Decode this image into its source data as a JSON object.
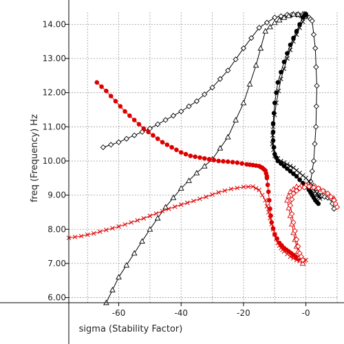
{
  "chart_data": {
    "type": "line",
    "xlabel": "sigma (Stability Factor)",
    "ylabel": "freq (Frequency) Hz",
    "xlim": [
      -76,
      10
    ],
    "ylim": [
      5.85,
      14.35
    ],
    "xticks": [
      {
        "value": -60,
        "label": "-60"
      },
      {
        "value": -40,
        "label": "-40"
      },
      {
        "value": -20,
        "label": "-20"
      },
      {
        "value": 0,
        "label": "-0"
      }
    ],
    "yticks": [
      {
        "value": 6,
        "label": "6.00"
      },
      {
        "value": 7,
        "label": "7.00"
      },
      {
        "value": 8,
        "label": "8.00"
      },
      {
        "value": 9,
        "label": "9.00"
      },
      {
        "value": 10,
        "label": "10.00"
      },
      {
        "value": 11,
        "label": "11.00"
      },
      {
        "value": 12,
        "label": "12.00"
      },
      {
        "value": 13,
        "label": "13.00"
      },
      {
        "value": 14,
        "label": "14.00"
      }
    ],
    "grid": true,
    "series": [
      {
        "color": "#000000",
        "marker": "diamond",
        "points": [
          [
            -65,
            10.4
          ],
          [
            -60,
            10.55
          ],
          [
            -55,
            10.75
          ],
          [
            -50,
            10.95
          ],
          [
            -45,
            11.2
          ],
          [
            -40,
            11.45
          ],
          [
            -35,
            11.75
          ],
          [
            -30,
            12.15
          ],
          [
            -25,
            12.65
          ],
          [
            -20,
            13.3
          ],
          [
            -15,
            13.9
          ],
          [
            -10,
            14.2
          ],
          [
            -6,
            14.28
          ],
          [
            -3,
            14.28
          ],
          [
            -1,
            14.25
          ],
          [
            1,
            14.2
          ],
          [
            2,
            14.1
          ],
          [
            3,
            13.3
          ],
          [
            3.5,
            12.2
          ],
          [
            3.2,
            11.0
          ],
          [
            2.5,
            10.0
          ],
          [
            1.5,
            9.4
          ],
          [
            1,
            9.15
          ],
          [
            2,
            9.05
          ],
          [
            4,
            9.0
          ],
          [
            6,
            8.95
          ],
          [
            8,
            8.9
          ],
          [
            9,
            8.6
          ]
        ]
      },
      {
        "color": "#000000",
        "marker": "triangle",
        "points": [
          [
            -64,
            5.85
          ],
          [
            -60,
            6.6
          ],
          [
            -55,
            7.3
          ],
          [
            -50,
            8.0
          ],
          [
            -45,
            8.65
          ],
          [
            -40,
            9.2
          ],
          [
            -35,
            9.65
          ],
          [
            -30,
            10.05
          ],
          [
            -25,
            10.7
          ],
          [
            -20,
            11.7
          ],
          [
            -16,
            12.8
          ],
          [
            -13,
            13.8
          ],
          [
            -10,
            14.05
          ],
          [
            -7,
            14.2
          ],
          [
            -4,
            14.3
          ],
          [
            -1,
            14.3
          ],
          [
            0,
            14.3
          ]
        ]
      },
      {
        "color": "#000000",
        "marker": "circle",
        "points": [
          [
            0,
            14.3
          ],
          [
            -1,
            14.2
          ],
          [
            -3,
            13.8
          ],
          [
            -5,
            13.4
          ],
          [
            -7,
            12.9
          ],
          [
            -9,
            12.3
          ],
          [
            -10,
            11.7
          ],
          [
            -10.5,
            11.1
          ],
          [
            -10.5,
            10.6
          ],
          [
            -10,
            10.2
          ],
          [
            -9,
            10.0
          ],
          [
            -7,
            9.85
          ],
          [
            -5,
            9.7
          ],
          [
            -3,
            9.55
          ],
          [
            -1,
            9.35
          ],
          [
            1,
            9.15
          ],
          [
            2,
            9.0
          ],
          [
            3,
            8.85
          ],
          [
            4,
            8.75
          ]
        ]
      },
      {
        "color": "#000000",
        "marker": "x",
        "points": [
          [
            0,
            14.25
          ],
          [
            -2,
            13.9
          ],
          [
            -4,
            13.5
          ],
          [
            -6,
            13.0
          ],
          [
            -8,
            12.4
          ],
          [
            -9.5,
            11.7
          ],
          [
            -10.5,
            11.0
          ],
          [
            -10.8,
            10.5
          ],
          [
            -10,
            10.15
          ],
          [
            -8,
            10.0
          ],
          [
            -6,
            9.9
          ],
          [
            -4,
            9.8
          ],
          [
            -2,
            9.65
          ],
          [
            0,
            9.5
          ],
          [
            2,
            9.3
          ],
          [
            3,
            9.1
          ],
          [
            4,
            9.0
          ],
          [
            4.5,
            8.9
          ]
        ]
      },
      {
        "color": "#dd0000",
        "marker": "circle",
        "points": [
          [
            -67,
            12.3
          ],
          [
            -64,
            12.05
          ],
          [
            -61,
            11.75
          ],
          [
            -58,
            11.45
          ],
          [
            -55,
            11.2
          ],
          [
            -52,
            10.95
          ],
          [
            -49,
            10.75
          ],
          [
            -46,
            10.55
          ],
          [
            -43,
            10.4
          ],
          [
            -40,
            10.25
          ],
          [
            -37,
            10.15
          ],
          [
            -34,
            10.1
          ],
          [
            -31,
            10.05
          ],
          [
            -28,
            10.0
          ],
          [
            -25,
            9.98
          ],
          [
            -22,
            9.95
          ],
          [
            -19,
            9.9
          ],
          [
            -17,
            9.88
          ],
          [
            -15,
            9.85
          ],
          [
            -14,
            9.8
          ],
          [
            -13,
            9.72
          ],
          [
            -12.5,
            9.55
          ]
        ]
      },
      {
        "color": "#dd0000",
        "marker": "x",
        "points": [
          [
            -76,
            7.75
          ],
          [
            -72,
            7.8
          ],
          [
            -68,
            7.88
          ],
          [
            -64,
            7.98
          ],
          [
            -60,
            8.08
          ],
          [
            -56,
            8.2
          ],
          [
            -52,
            8.32
          ],
          [
            -48,
            8.46
          ],
          [
            -44,
            8.6
          ],
          [
            -40,
            8.72
          ],
          [
            -36,
            8.83
          ],
          [
            -32,
            8.95
          ],
          [
            -28,
            9.08
          ],
          [
            -24,
            9.18
          ],
          [
            -20,
            9.24
          ],
          [
            -17,
            9.25
          ],
          [
            -15,
            9.15
          ],
          [
            -13,
            8.85
          ],
          [
            -12,
            8.5
          ],
          [
            -11,
            8.15
          ],
          [
            -10,
            7.85
          ],
          [
            -9,
            7.6
          ],
          [
            -8,
            7.45
          ],
          [
            -7,
            7.35
          ],
          [
            -5,
            7.2
          ],
          [
            -3,
            7.1
          ],
          [
            -1,
            7.05
          ],
          [
            0,
            7.1
          ]
        ]
      },
      {
        "color": "#dd0000",
        "marker": "circle",
        "points": [
          [
            -12.5,
            9.5
          ],
          [
            -12,
            9.1
          ],
          [
            -11.5,
            8.6
          ],
          [
            -11,
            8.2
          ],
          [
            -10,
            7.85
          ],
          [
            -8.5,
            7.6
          ],
          [
            -7,
            7.45
          ],
          [
            -5.5,
            7.35
          ],
          [
            -4,
            7.25
          ],
          [
            -2.5,
            7.15
          ],
          [
            -1.5,
            7.1
          ],
          [
            -1,
            7.1
          ]
        ]
      },
      {
        "color": "#dd0000",
        "marker": "triangle",
        "points": [
          [
            -1,
            7.0
          ],
          [
            -2,
            7.2
          ],
          [
            -3,
            7.5
          ],
          [
            -4,
            7.9
          ],
          [
            -5,
            8.4
          ],
          [
            -6,
            8.85
          ],
          [
            -5,
            9.1
          ],
          [
            -3,
            9.25
          ],
          [
            0,
            9.3
          ],
          [
            3,
            9.25
          ],
          [
            6,
            9.1
          ],
          [
            9,
            8.9
          ]
        ]
      },
      {
        "color": "#dd0000",
        "marker": "diamond",
        "points": [
          [
            -1,
            7.1
          ],
          [
            -2,
            7.3
          ],
          [
            -3,
            7.7
          ],
          [
            -4,
            8.2
          ],
          [
            -5,
            8.7
          ],
          [
            -4,
            9.05
          ],
          [
            -2,
            9.2
          ],
          [
            1,
            9.25
          ],
          [
            4,
            9.2
          ],
          [
            7,
            9.05
          ],
          [
            9,
            8.85
          ],
          [
            10,
            8.65
          ]
        ]
      }
    ]
  }
}
